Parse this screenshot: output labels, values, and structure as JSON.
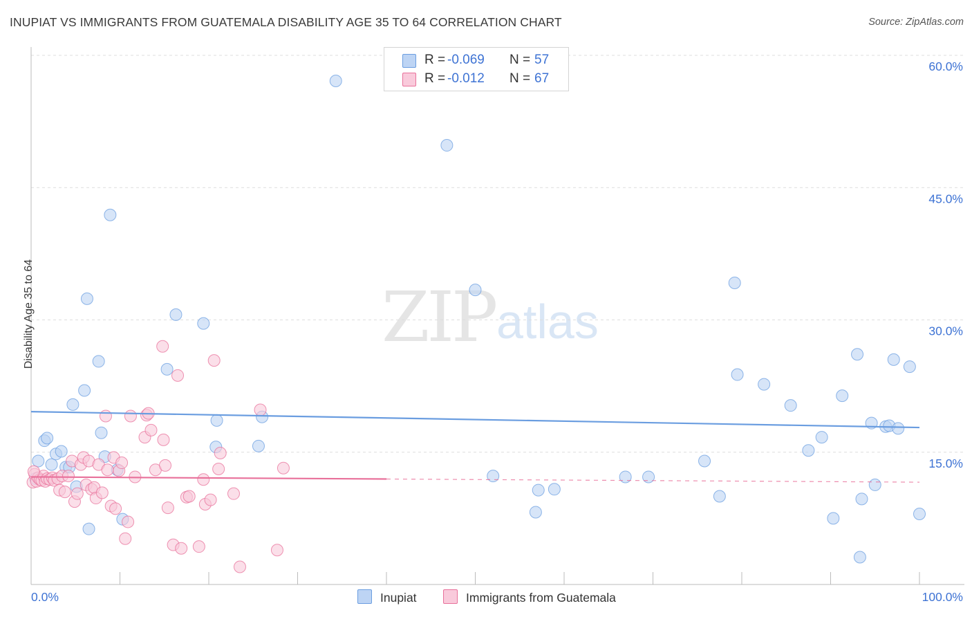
{
  "header": {
    "title": "INUPIAT VS IMMIGRANTS FROM GUATEMALA DISABILITY AGE 35 TO 64 CORRELATION CHART",
    "source": "Source: ZipAtlas.com"
  },
  "watermark": {
    "part1": "ZIP",
    "part2": "atlas"
  },
  "stats_legend": {
    "rows": [
      {
        "r_label": "R =",
        "r_value": "-0.069",
        "n_label": "N =",
        "n_value": "57",
        "color": "#a9c6ee"
      },
      {
        "r_label": "R =",
        "r_value": "-0.012",
        "n_label": "N =",
        "n_value": "67",
        "color": "#f6b9cd"
      }
    ]
  },
  "bottom_legend": {
    "items": [
      {
        "label": "Inupiat",
        "color": "#a9c6ee"
      },
      {
        "label": "Immigrants from Guatemala",
        "color": "#f6b9cd"
      }
    ]
  },
  "chart_data": {
    "type": "scatter",
    "title": "INUPIAT VS IMMIGRANTS FROM GUATEMALA DISABILITY AGE 35 TO 64 CORRELATION CHART",
    "xlabel": "",
    "ylabel": "Disability Age 35 to 64",
    "xlim": [
      0,
      100
    ],
    "ylim": [
      0,
      60
    ],
    "x_tick_labels": [
      "0.0%",
      "100.0%"
    ],
    "y_ticks": [
      15,
      30,
      45,
      60
    ],
    "y_tick_labels": [
      "15.0%",
      "30.0%",
      "45.0%",
      "60.0%"
    ],
    "grid": true,
    "legend_position": "bottom",
    "series": [
      {
        "name": "Inupiat",
        "color": "#6a9de0",
        "fill": "#bdd4f4",
        "trend": {
          "x": [
            0,
            100
          ],
          "y": [
            19.6,
            17.8
          ],
          "dashed_from": null
        },
        "points": [
          [
            0.8,
            14.0
          ],
          [
            1.5,
            16.3
          ],
          [
            1.8,
            16.6
          ],
          [
            2.3,
            13.6
          ],
          [
            2.8,
            14.8
          ],
          [
            3.4,
            15.1
          ],
          [
            3.9,
            13.3
          ],
          [
            4.3,
            13.3
          ],
          [
            4.7,
            20.4
          ],
          [
            5.1,
            11.1
          ],
          [
            6.0,
            22.0
          ],
          [
            6.3,
            32.4
          ],
          [
            6.5,
            6.3
          ],
          [
            7.6,
            25.3
          ],
          [
            7.9,
            17.2
          ],
          [
            8.3,
            14.5
          ],
          [
            8.9,
            41.9
          ],
          [
            9.7,
            13.0
          ],
          [
            10.3,
            7.4
          ],
          [
            15.3,
            24.4
          ],
          [
            16.3,
            30.6
          ],
          [
            19.4,
            29.6
          ],
          [
            20.9,
            18.6
          ],
          [
            20.8,
            15.6
          ],
          [
            25.6,
            15.7
          ],
          [
            26.0,
            19.0
          ],
          [
            34.3,
            57.1
          ],
          [
            46.8,
            49.8
          ],
          [
            50.0,
            33.4
          ],
          [
            52.0,
            12.3
          ],
          [
            56.8,
            8.2
          ],
          [
            57.1,
            10.7
          ],
          [
            58.9,
            10.8
          ],
          [
            66.9,
            12.2
          ],
          [
            69.5,
            12.2
          ],
          [
            75.8,
            14.0
          ],
          [
            77.5,
            10.0
          ],
          [
            79.2,
            34.2
          ],
          [
            79.5,
            23.8
          ],
          [
            82.5,
            22.7
          ],
          [
            85.5,
            20.3
          ],
          [
            87.5,
            15.2
          ],
          [
            89.0,
            16.7
          ],
          [
            90.3,
            7.5
          ],
          [
            91.3,
            21.4
          ],
          [
            93.0,
            26.1
          ],
          [
            93.3,
            3.1
          ],
          [
            93.5,
            9.7
          ],
          [
            94.6,
            18.3
          ],
          [
            95.0,
            11.3
          ],
          [
            96.2,
            17.9
          ],
          [
            96.6,
            18.0
          ],
          [
            97.1,
            25.5
          ],
          [
            97.6,
            17.7
          ],
          [
            98.9,
            24.7
          ],
          [
            100.0,
            8.0
          ],
          [
            0.5,
            12.0
          ]
        ]
      },
      {
        "name": "Immigrants from Guatemala",
        "color": "#e8709a",
        "fill": "#f9cadb",
        "trend": {
          "x": [
            0,
            100
          ],
          "y": [
            12.2,
            11.6
          ],
          "dashed_from": 40
        },
        "points": [
          [
            0.2,
            11.6
          ],
          [
            0.4,
            12.5
          ],
          [
            0.6,
            11.7
          ],
          [
            0.8,
            12.1
          ],
          [
            1.0,
            11.9
          ],
          [
            1.2,
            11.8
          ],
          [
            1.4,
            12.3
          ],
          [
            1.6,
            11.7
          ],
          [
            1.8,
            12.0
          ],
          [
            2.1,
            11.9
          ],
          [
            2.4,
            12.1
          ],
          [
            2.6,
            11.8
          ],
          [
            3.0,
            12.0
          ],
          [
            3.2,
            10.7
          ],
          [
            3.5,
            12.3
          ],
          [
            3.8,
            10.5
          ],
          [
            4.2,
            12.3
          ],
          [
            4.6,
            14.0
          ],
          [
            4.9,
            9.4
          ],
          [
            5.2,
            10.3
          ],
          [
            5.6,
            13.6
          ],
          [
            5.9,
            14.4
          ],
          [
            6.2,
            11.3
          ],
          [
            6.5,
            14.0
          ],
          [
            6.8,
            10.8
          ],
          [
            7.1,
            11.0
          ],
          [
            7.3,
            9.8
          ],
          [
            7.6,
            13.6
          ],
          [
            8.0,
            10.4
          ],
          [
            8.4,
            19.1
          ],
          [
            8.6,
            13.0
          ],
          [
            9.0,
            8.9
          ],
          [
            9.3,
            14.4
          ],
          [
            9.5,
            8.6
          ],
          [
            9.9,
            12.9
          ],
          [
            10.2,
            13.8
          ],
          [
            10.6,
            5.2
          ],
          [
            10.9,
            7.1
          ],
          [
            11.2,
            19.1
          ],
          [
            11.7,
            12.2
          ],
          [
            12.8,
            16.7
          ],
          [
            13.0,
            19.2
          ],
          [
            13.2,
            19.4
          ],
          [
            13.5,
            17.5
          ],
          [
            14.0,
            13.0
          ],
          [
            14.8,
            27.0
          ],
          [
            14.9,
            16.4
          ],
          [
            15.1,
            13.5
          ],
          [
            15.4,
            8.7
          ],
          [
            16.0,
            4.5
          ],
          [
            16.5,
            23.7
          ],
          [
            16.9,
            4.1
          ],
          [
            17.5,
            9.9
          ],
          [
            17.8,
            10.0
          ],
          [
            18.9,
            4.3
          ],
          [
            19.4,
            11.9
          ],
          [
            19.6,
            9.1
          ],
          [
            20.2,
            9.6
          ],
          [
            20.6,
            25.4
          ],
          [
            21.1,
            13.1
          ],
          [
            21.3,
            14.9
          ],
          [
            22.8,
            10.3
          ],
          [
            23.5,
            2.0
          ],
          [
            25.8,
            19.8
          ],
          [
            27.7,
            3.9
          ],
          [
            28.4,
            13.2
          ],
          [
            0.3,
            12.8
          ]
        ]
      }
    ]
  }
}
